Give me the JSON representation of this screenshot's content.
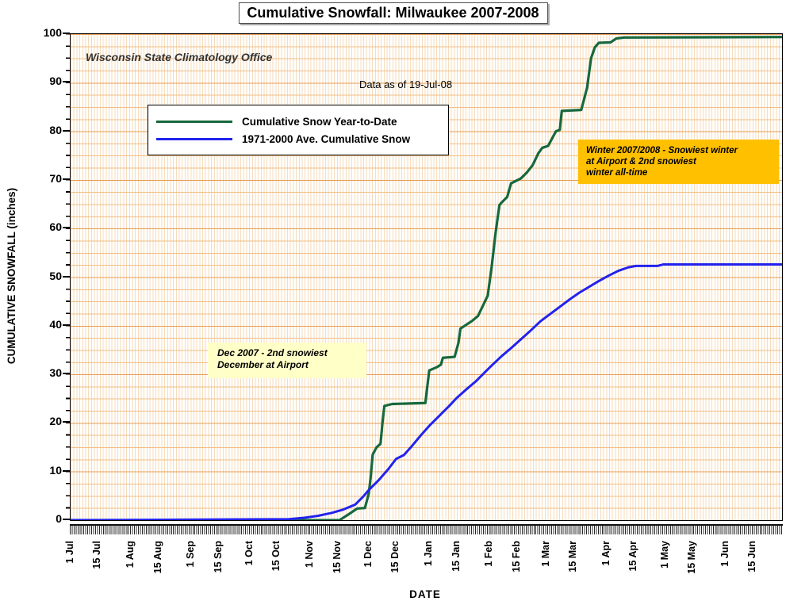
{
  "chart_data": {
    "type": "line",
    "title": "Cumulative Snowfall: Milwaukee 2007-2008",
    "xlabel": "DATE",
    "ylabel": "CUMULATIVE SNOWFALL (inches)",
    "ylim": [
      0,
      100
    ],
    "y_ticks": [
      0,
      10,
      20,
      30,
      40,
      50,
      60,
      70,
      80,
      90,
      100
    ],
    "y_minor_step": 2.5,
    "x_axis_days": 365,
    "x_ticks": [
      {
        "day": 0,
        "label": "1 Jul"
      },
      {
        "day": 14,
        "label": "15 Jul"
      },
      {
        "day": 31,
        "label": "1 Aug"
      },
      {
        "day": 45,
        "label": "15 Aug"
      },
      {
        "day": 62,
        "label": "1 Sep"
      },
      {
        "day": 76,
        "label": "15 Sep"
      },
      {
        "day": 92,
        "label": "1 Oct"
      },
      {
        "day": 106,
        "label": "15 Oct"
      },
      {
        "day": 123,
        "label": "1 Nov"
      },
      {
        "day": 137,
        "label": "15 Nov"
      },
      {
        "day": 153,
        "label": "1 Dec"
      },
      {
        "day": 167,
        "label": "15 Dec"
      },
      {
        "day": 184,
        "label": "1 Jan"
      },
      {
        "day": 198,
        "label": "15 Jan"
      },
      {
        "day": 215,
        "label": "1 Feb"
      },
      {
        "day": 229,
        "label": "15 Feb"
      },
      {
        "day": 244,
        "label": "1 Mar"
      },
      {
        "day": 258,
        "label": "15 Mar"
      },
      {
        "day": 275,
        "label": "1 Apr"
      },
      {
        "day": 289,
        "label": "15 Apr"
      },
      {
        "day": 305,
        "label": "1 May"
      },
      {
        "day": 319,
        "label": "15 May"
      },
      {
        "day": 336,
        "label": "1 Jun"
      },
      {
        "day": 350,
        "label": "15 Jun"
      }
    ],
    "grid": {
      "h_major_color": "#e79d55",
      "h_minor_color": "#f2be85",
      "v_color": "#f6dcbf",
      "plot_background": "#fffefb"
    },
    "legend": {
      "position": "upper-left-inset",
      "entries": [
        {
          "name": "Cumulative Snow Year-to-Date",
          "color": "#17683d"
        },
        {
          "name": "1971-2000 Ave. Cumulative Snow",
          "color": "#2222ee"
        }
      ]
    },
    "series": [
      {
        "name": "Cumulative Snow Year-to-Date",
        "color": "#17683d",
        "width": 3.2,
        "points": [
          [
            0,
            0
          ],
          [
            138,
            0
          ],
          [
            143,
            1.3
          ],
          [
            147,
            2.4
          ],
          [
            151,
            2.5
          ],
          [
            153,
            5.5
          ],
          [
            154,
            9
          ],
          [
            155,
            13.5
          ],
          [
            157,
            15
          ],
          [
            159,
            15.7
          ],
          [
            160,
            20
          ],
          [
            161,
            23.5
          ],
          [
            165,
            23.9
          ],
          [
            182,
            24.1
          ],
          [
            184,
            30.8
          ],
          [
            188,
            31.5
          ],
          [
            190,
            32
          ],
          [
            191,
            33.4
          ],
          [
            197,
            33.6
          ],
          [
            199,
            36.5
          ],
          [
            200,
            39.4
          ],
          [
            203,
            40.2
          ],
          [
            206,
            41
          ],
          [
            209,
            42
          ],
          [
            212,
            44.5
          ],
          [
            214,
            46.2
          ],
          [
            216,
            52
          ],
          [
            218,
            59
          ],
          [
            220,
            64.8
          ],
          [
            221,
            65.3
          ],
          [
            224,
            66.5
          ],
          [
            226,
            69.3
          ],
          [
            231,
            70.3
          ],
          [
            234,
            71.5
          ],
          [
            237,
            73
          ],
          [
            240,
            75.5
          ],
          [
            242,
            76.6
          ],
          [
            245,
            77
          ],
          [
            247,
            78.5
          ],
          [
            249,
            80
          ],
          [
            251,
            80.3
          ],
          [
            252,
            84.2
          ],
          [
            262,
            84.4
          ],
          [
            265,
            89
          ],
          [
            267,
            95
          ],
          [
            269,
            97.3
          ],
          [
            271,
            98.2
          ],
          [
            277,
            98.3
          ],
          [
            280,
            99.1
          ],
          [
            284,
            99.3
          ],
          [
            365,
            99.4
          ]
        ]
      },
      {
        "name": "1971-2000 Ave. Cumulative Snow",
        "color": "#2222ee",
        "width": 3,
        "points": [
          [
            0,
            0
          ],
          [
            112,
            0.2
          ],
          [
            120,
            0.5
          ],
          [
            127,
            0.9
          ],
          [
            134,
            1.5
          ],
          [
            140,
            2.2
          ],
          [
            146,
            3.2
          ],
          [
            150,
            4.8
          ],
          [
            153,
            6.2
          ],
          [
            158,
            8.2
          ],
          [
            163,
            10.5
          ],
          [
            167,
            12.6
          ],
          [
            171,
            13.4
          ],
          [
            175,
            15.2
          ],
          [
            180,
            17.6
          ],
          [
            184,
            19.4
          ],
          [
            189,
            21.4
          ],
          [
            194,
            23.4
          ],
          [
            198,
            25.1
          ],
          [
            203,
            26.9
          ],
          [
            208,
            28.6
          ],
          [
            212,
            30.2
          ],
          [
            216,
            31.8
          ],
          [
            221,
            33.7
          ],
          [
            226,
            35.4
          ],
          [
            231,
            37.2
          ],
          [
            236,
            39
          ],
          [
            241,
            40.9
          ],
          [
            246,
            42.4
          ],
          [
            251,
            43.9
          ],
          [
            256,
            45.4
          ],
          [
            261,
            46.8
          ],
          [
            266,
            48
          ],
          [
            271,
            49.2
          ],
          [
            276,
            50.3
          ],
          [
            281,
            51.3
          ],
          [
            286,
            52
          ],
          [
            290,
            52.3
          ],
          [
            301,
            52.3
          ],
          [
            304,
            52.6
          ],
          [
            365,
            52.6
          ]
        ]
      }
    ],
    "annotations": [
      {
        "id": "office-note",
        "text": "Wisconsin State Climatology Office"
      },
      {
        "id": "data-as-of-note",
        "text": "Data as of 19-Jul-08"
      },
      {
        "id": "winter-note",
        "text": "Winter 2007/2008 - Snowiest winter\nat Airport & 2nd snowiest\nwinter all-time",
        "bg": "#ffc000"
      },
      {
        "id": "dec-note",
        "text": "Dec 2007 - 2nd snowiest\nDecember at Airport",
        "bg": "#ffffc8"
      }
    ]
  }
}
